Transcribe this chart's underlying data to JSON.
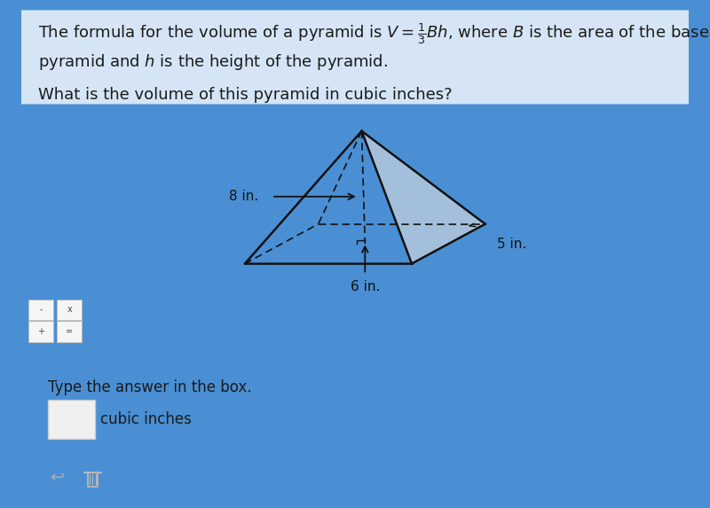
{
  "bg_blue": "#4A8FD4",
  "bg_panel_top": "#D5E5F5",
  "bg_panel_mid": "#E8E8E8",
  "bg_panel_bottom": "#FFFFFF",
  "text_dark": "#1a1a1a",
  "line_color": "#111111",
  "title_line1": "The formula for the volume of a pyramid is $V = \\frac{1}{3}Bh$, where $B$ is the area of the base of the",
  "title_line2": "pyramid and $h$ is the height of the pyramid.",
  "question": "What is the volume of this pyramid in cubic inches?",
  "label_8in": "8 in.",
  "label_5in": "5 in.",
  "label_6in": "6 in.",
  "answer_prompt": "Type the answer in the box.",
  "answer_unit": "cubic inches",
  "font_size_title": 13,
  "font_size_label": 11,
  "font_size_answer": 12,
  "shaded_face_color": "#E0E0E0",
  "shaded_face_alpha": 0.6
}
